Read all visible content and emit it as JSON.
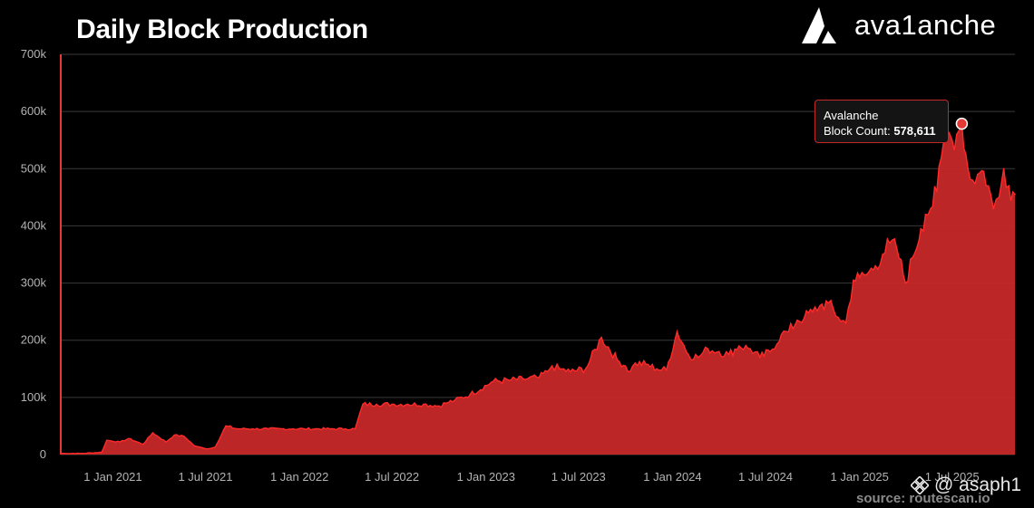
{
  "header": {
    "title": "Daily Block Production",
    "brand": "ava1anche",
    "brand_icon": "avalanche-logo-icon"
  },
  "tooltip": {
    "series": "Avalanche",
    "label": "Block Count: ",
    "value": "578,611"
  },
  "watermark": {
    "icon": "binance-diamond-icon",
    "text": "@ asaph1"
  },
  "source": "source: routescan.io",
  "colors": {
    "series": "#c62828",
    "line": "#ff2a2a",
    "grid": "#3a3a3a",
    "background": "#000000"
  },
  "chart_data": {
    "type": "area",
    "title": "Daily Block Production",
    "xlabel": "",
    "ylabel": "",
    "ylim": [
      0,
      700000
    ],
    "y_ticks": [
      "0",
      "100k",
      "200k",
      "300k",
      "400k",
      "500k",
      "600k",
      "700k"
    ],
    "x_ticks": [
      "1 Jan 2021",
      "1 Jul 2021",
      "1 Jan 2022",
      "1 Jul 2022",
      "1 Jan 2023",
      "1 Jul 2023",
      "1 Jan 2024",
      "1 Jul 2024",
      "1 Jan 2025",
      "1 Jul 2025"
    ],
    "grid": true,
    "legend": "none",
    "series": [
      {
        "name": "Avalanche",
        "x": [
          "2020-09-21",
          "2020-11-01",
          "2020-12-10",
          "2020-12-20",
          "2021-01-15",
          "2021-02-01",
          "2021-03-01",
          "2021-03-20",
          "2021-04-15",
          "2021-05-01",
          "2021-05-20",
          "2021-06-10",
          "2021-06-25",
          "2021-07-05",
          "2021-07-20",
          "2021-08-10",
          "2021-09-01",
          "2021-10-01",
          "2021-11-01",
          "2021-12-01",
          "2021-12-20",
          "2022-01-10",
          "2022-02-01",
          "2022-03-01",
          "2022-04-01",
          "2022-04-20",
          "2022-05-05",
          "2022-06-01",
          "2022-07-01",
          "2022-08-01",
          "2022-09-01",
          "2022-10-01",
          "2022-10-15",
          "2022-11-01",
          "2022-12-01",
          "2023-01-15",
          "2023-02-15",
          "2023-03-15",
          "2023-04-15",
          "2023-05-01",
          "2023-05-10",
          "2023-05-25",
          "2023-06-15",
          "2023-07-15",
          "2023-08-15",
          "2023-09-15",
          "2023-10-01",
          "2023-10-10",
          "2023-10-20",
          "2023-11-10",
          "2023-12-01",
          "2023-12-20",
          "2024-01-10",
          "2024-02-01",
          "2024-02-20",
          "2024-03-10",
          "2024-04-01",
          "2024-04-20",
          "2024-05-10",
          "2024-06-01",
          "2024-06-20",
          "2024-07-10",
          "2024-08-01",
          "2024-08-15",
          "2024-09-01",
          "2024-09-15",
          "2024-10-01",
          "2024-10-15",
          "2024-11-01",
          "2024-11-20",
          "2024-12-05",
          "2024-12-20",
          "2025-01-01",
          "2025-01-15",
          "2025-02-01",
          "2025-02-15",
          "2025-03-01",
          "2025-03-15",
          "2025-04-01",
          "2025-04-15",
          "2025-05-01",
          "2025-05-10",
          "2025-05-20",
          "2025-06-01",
          "2025-06-10",
          "2025-06-20",
          "2025-07-01",
          "2025-07-10",
          "2025-07-20",
          "2025-08-01",
          "2025-08-10",
          "2025-08-20",
          "2025-09-01",
          "2025-09-10",
          "2025-09-20",
          "2025-10-01",
          "2025-10-10",
          "2025-10-20",
          "2025-11-01"
        ],
        "y": [
          2000,
          2000,
          4000,
          25000,
          22000,
          28000,
          18000,
          38000,
          22000,
          34000,
          32000,
          15000,
          12000,
          10000,
          13000,
          50000,
          45000,
          45000,
          45000,
          45000,
          45000,
          45000,
          45000,
          45000,
          45000,
          45000,
          88000,
          88000,
          88000,
          88000,
          88000,
          85000,
          90000,
          95000,
          105000,
          128000,
          130000,
          132000,
          135000,
          145000,
          155000,
          150000,
          145000,
          150000,
          205000,
          165000,
          155000,
          145000,
          160000,
          158000,
          150000,
          148000,
          215000,
          175000,
          170000,
          185000,
          180000,
          175000,
          190000,
          185000,
          170000,
          180000,
          210000,
          215000,
          235000,
          240000,
          250000,
          260000,
          265000,
          240000,
          230000,
          305000,
          310000,
          315000,
          330000,
          350000,
          370000,
          360000,
          300000,
          345000,
          395000,
          420000,
          430000,
          460000,
          520000,
          570000,
          550000,
          560000,
          578611,
          500000,
          480000,
          490000,
          495000,
          470000,
          430000,
          450000,
          500000,
          470000,
          455000
        ]
      }
    ],
    "annotations": [
      {
        "text": "Avalanche Block Count: 578,611",
        "x": "2025-07-20",
        "y": 578611
      }
    ]
  }
}
